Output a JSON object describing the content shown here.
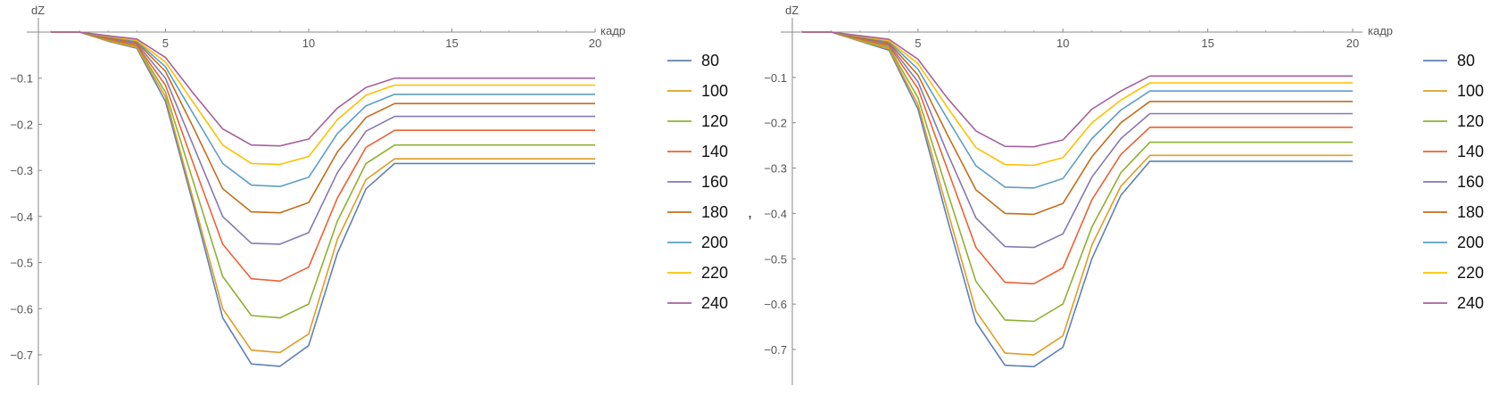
{
  "separator": ",",
  "chart_data": [
    {
      "type": "line",
      "title": "",
      "xlabel": "кадр",
      "ylabel": "dZ",
      "xlim": [
        0.5,
        20.5
      ],
      "ylim": [
        -0.77,
        0.02
      ],
      "x_ticks": [
        5,
        10,
        15,
        20
      ],
      "y_ticks": [
        -0.1,
        -0.2,
        -0.3,
        -0.4,
        -0.5,
        -0.6,
        -0.7
      ],
      "x_tick_labels": [
        "5",
        "10",
        "15",
        "20"
      ],
      "y_tick_labels": [
        "-0.1",
        "-0.2",
        "-0.3",
        "-0.4",
        "-0.5",
        "-0.6",
        "-0.7"
      ],
      "legend_position": "right",
      "x": [
        1,
        2,
        3,
        4,
        5,
        6,
        7,
        8,
        9,
        10,
        11,
        12,
        13,
        14,
        15,
        16,
        17,
        18,
        19,
        20
      ],
      "series": [
        {
          "name": "80",
          "color": "#5E81B5",
          "values": [
            0,
            0,
            -0.02,
            -0.035,
            -0.15,
            -0.38,
            -0.62,
            -0.72,
            -0.725,
            -0.68,
            -0.48,
            -0.34,
            -0.285,
            -0.285,
            -0.285,
            -0.285,
            -0.285,
            -0.285,
            -0.285,
            -0.285
          ]
        },
        {
          "name": "100",
          "color": "#E19C24",
          "values": [
            0,
            0,
            -0.019,
            -0.033,
            -0.14,
            -0.37,
            -0.6,
            -0.69,
            -0.695,
            -0.655,
            -0.45,
            -0.32,
            -0.275,
            -0.275,
            -0.275,
            -0.275,
            -0.275,
            -0.275,
            -0.275,
            -0.275
          ]
        },
        {
          "name": "120",
          "color": "#8FB032",
          "values": [
            0,
            0,
            -0.017,
            -0.03,
            -0.13,
            -0.33,
            -0.53,
            -0.615,
            -0.62,
            -0.59,
            -0.41,
            -0.285,
            -0.245,
            -0.245,
            -0.245,
            -0.245,
            -0.245,
            -0.245,
            -0.245,
            -0.245
          ]
        },
        {
          "name": "140",
          "color": "#EB6235",
          "values": [
            0,
            0,
            -0.015,
            -0.028,
            -0.115,
            -0.29,
            -0.46,
            -0.535,
            -0.54,
            -0.51,
            -0.36,
            -0.25,
            -0.213,
            -0.213,
            -0.213,
            -0.213,
            -0.213,
            -0.213,
            -0.213,
            -0.213
          ]
        },
        {
          "name": "160",
          "color": "#8778B3",
          "values": [
            0,
            0,
            -0.013,
            -0.025,
            -0.1,
            -0.25,
            -0.4,
            -0.458,
            -0.46,
            -0.435,
            -0.305,
            -0.215,
            -0.183,
            -0.183,
            -0.183,
            -0.183,
            -0.183,
            -0.183,
            -0.183,
            -0.183
          ]
        },
        {
          "name": "180",
          "color": "#C56E1A",
          "values": [
            0,
            0,
            -0.012,
            -0.022,
            -0.085,
            -0.21,
            -0.34,
            -0.39,
            -0.392,
            -0.37,
            -0.26,
            -0.185,
            -0.155,
            -0.155,
            -0.155,
            -0.155,
            -0.155,
            -0.155,
            -0.155,
            -0.155
          ]
        },
        {
          "name": "200",
          "color": "#5D9EC7",
          "values": [
            0,
            0,
            -0.01,
            -0.02,
            -0.075,
            -0.18,
            -0.285,
            -0.332,
            -0.335,
            -0.315,
            -0.22,
            -0.16,
            -0.135,
            -0.135,
            -0.135,
            -0.135,
            -0.135,
            -0.135,
            -0.135,
            -0.135
          ]
        },
        {
          "name": "220",
          "color": "#FFBF00",
          "values": [
            0,
            0,
            -0.009,
            -0.018,
            -0.065,
            -0.155,
            -0.245,
            -0.285,
            -0.287,
            -0.27,
            -0.19,
            -0.137,
            -0.115,
            -0.115,
            -0.115,
            -0.115,
            -0.115,
            -0.115,
            -0.115,
            -0.115
          ]
        },
        {
          "name": "240",
          "color": "#A5609D",
          "values": [
            0,
            0,
            -0.008,
            -0.015,
            -0.055,
            -0.135,
            -0.21,
            -0.245,
            -0.247,
            -0.232,
            -0.165,
            -0.12,
            -0.1,
            -0.1,
            -0.1,
            -0.1,
            -0.1,
            -0.1,
            -0.1,
            -0.1
          ]
        }
      ]
    },
    {
      "type": "line",
      "title": "",
      "xlabel": "кадр",
      "ylabel": "dZ",
      "xlim": [
        0.5,
        20.5
      ],
      "ylim": [
        -0.77,
        0.02
      ],
      "x_ticks": [
        5,
        10,
        15,
        20
      ],
      "y_ticks": [
        -0.1,
        -0.2,
        -0.3,
        -0.4,
        -0.5,
        -0.6,
        -0.7
      ],
      "x_tick_labels": [
        "5",
        "10",
        "15",
        "20"
      ],
      "y_tick_labels": [
        "-0.1",
        "-0.2",
        "-0.3",
        "-0.4",
        "-0.5",
        "-0.6",
        "-0.7"
      ],
      "legend_position": "right",
      "x": [
        1,
        2,
        3,
        4,
        5,
        6,
        7,
        8,
        9,
        10,
        11,
        12,
        13,
        14,
        15,
        16,
        17,
        18,
        19,
        20
      ],
      "series": [
        {
          "name": "80",
          "color": "#5E81B5",
          "values": [
            0,
            0,
            -0.02,
            -0.04,
            -0.17,
            -0.41,
            -0.64,
            -0.735,
            -0.738,
            -0.695,
            -0.5,
            -0.36,
            -0.285,
            -0.285,
            -0.285,
            -0.285,
            -0.285,
            -0.285,
            -0.285,
            -0.285
          ]
        },
        {
          "name": "100",
          "color": "#E19C24",
          "values": [
            0,
            0,
            -0.019,
            -0.037,
            -0.16,
            -0.39,
            -0.615,
            -0.708,
            -0.712,
            -0.67,
            -0.47,
            -0.34,
            -0.272,
            -0.272,
            -0.272,
            -0.272,
            -0.272,
            -0.272,
            -0.272,
            -0.272
          ]
        },
        {
          "name": "120",
          "color": "#8FB032",
          "values": [
            0,
            0,
            -0.017,
            -0.034,
            -0.145,
            -0.35,
            -0.55,
            -0.635,
            -0.638,
            -0.6,
            -0.43,
            -0.31,
            -0.243,
            -0.243,
            -0.243,
            -0.243,
            -0.243,
            -0.243,
            -0.243,
            -0.243
          ]
        },
        {
          "name": "140",
          "color": "#EB6235",
          "values": [
            0,
            0,
            -0.015,
            -0.03,
            -0.125,
            -0.3,
            -0.475,
            -0.552,
            -0.555,
            -0.52,
            -0.37,
            -0.27,
            -0.21,
            -0.21,
            -0.21,
            -0.21,
            -0.21,
            -0.21,
            -0.21,
            -0.21
          ]
        },
        {
          "name": "160",
          "color": "#8778B3",
          "values": [
            0,
            0,
            -0.013,
            -0.027,
            -0.11,
            -0.265,
            -0.41,
            -0.473,
            -0.475,
            -0.445,
            -0.32,
            -0.235,
            -0.18,
            -0.18,
            -0.18,
            -0.18,
            -0.18,
            -0.18,
            -0.18,
            -0.18
          ]
        },
        {
          "name": "180",
          "color": "#C56E1A",
          "values": [
            0,
            0,
            -0.012,
            -0.024,
            -0.095,
            -0.225,
            -0.348,
            -0.4,
            -0.402,
            -0.378,
            -0.275,
            -0.2,
            -0.153,
            -0.153,
            -0.153,
            -0.153,
            -0.153,
            -0.153,
            -0.153,
            -0.153
          ]
        },
        {
          "name": "200",
          "color": "#5D9EC7",
          "values": [
            0,
            0,
            -0.01,
            -0.021,
            -0.082,
            -0.19,
            -0.295,
            -0.342,
            -0.344,
            -0.323,
            -0.235,
            -0.172,
            -0.13,
            -0.13,
            -0.13,
            -0.13,
            -0.13,
            -0.13,
            -0.13,
            -0.13
          ]
        },
        {
          "name": "220",
          "color": "#FFBF00",
          "values": [
            0,
            0,
            -0.009,
            -0.019,
            -0.07,
            -0.165,
            -0.255,
            -0.292,
            -0.294,
            -0.277,
            -0.2,
            -0.15,
            -0.112,
            -0.112,
            -0.112,
            -0.112,
            -0.112,
            -0.112,
            -0.112,
            -0.112
          ]
        },
        {
          "name": "240",
          "color": "#A5609D",
          "values": [
            0,
            0,
            -0.008,
            -0.016,
            -0.06,
            -0.145,
            -0.218,
            -0.252,
            -0.253,
            -0.238,
            -0.17,
            -0.13,
            -0.097,
            -0.097,
            -0.097,
            -0.097,
            -0.097,
            -0.097,
            -0.097,
            -0.097
          ]
        }
      ]
    }
  ]
}
